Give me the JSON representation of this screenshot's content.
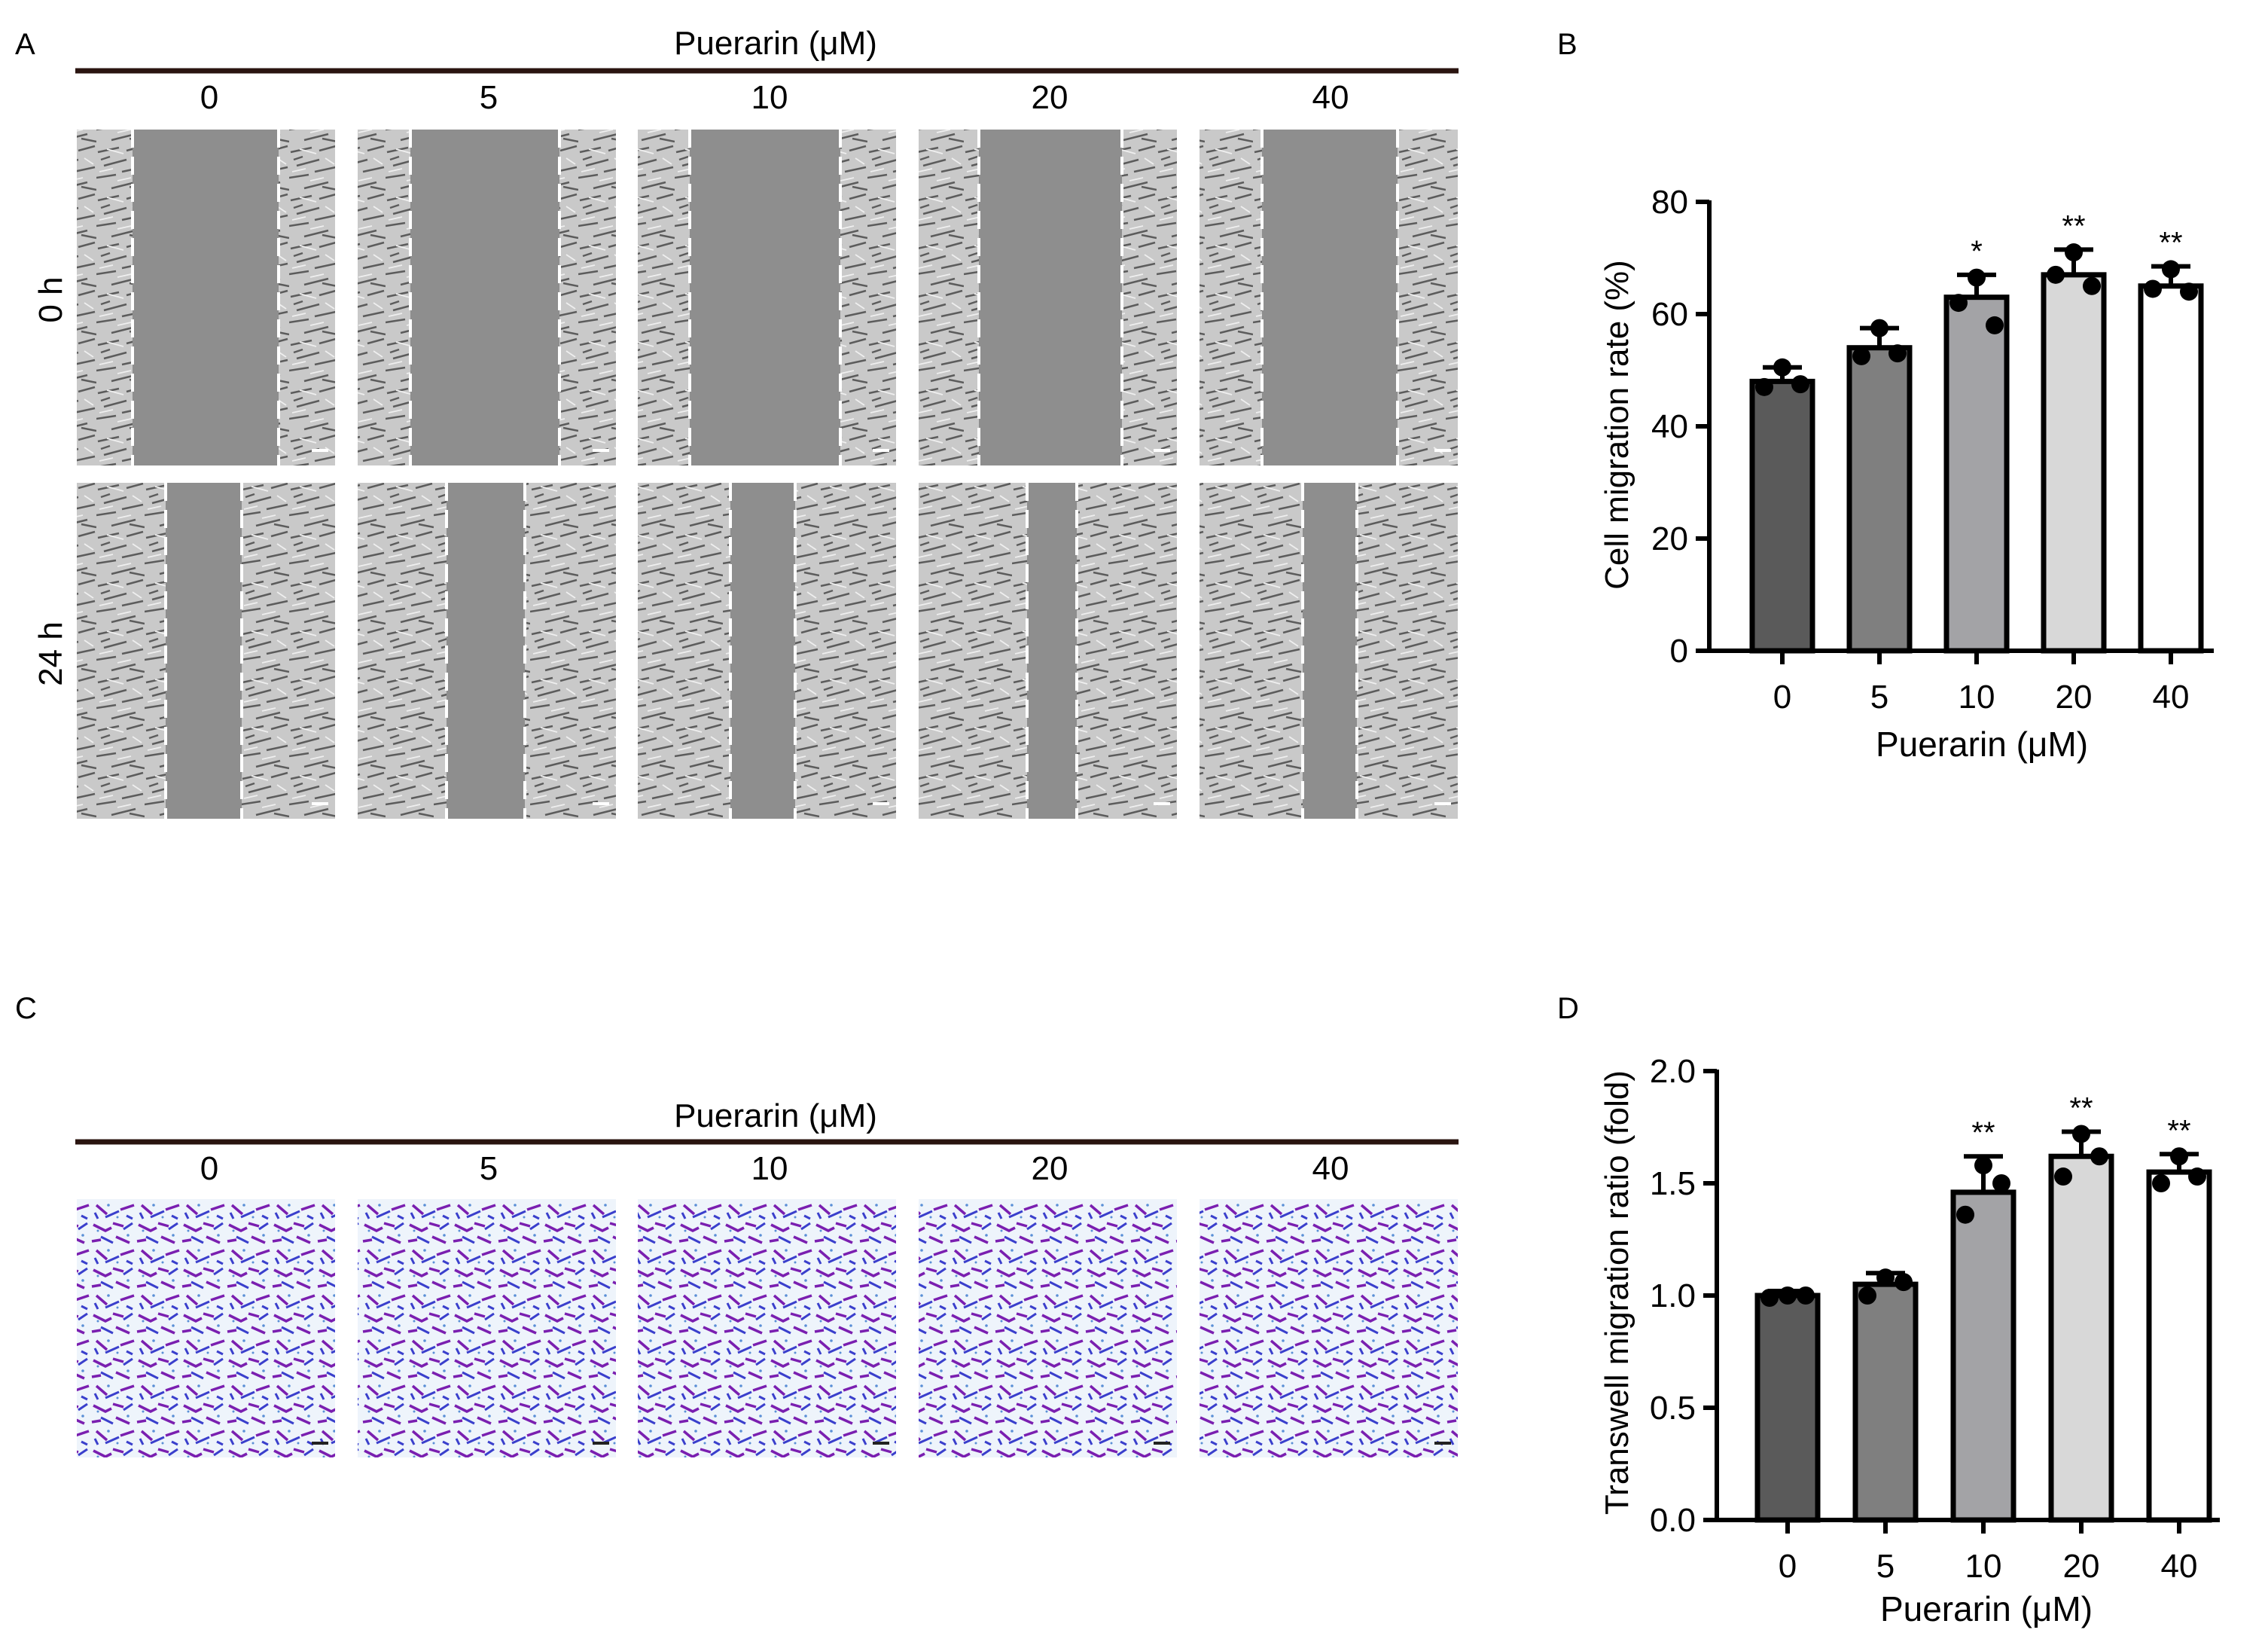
{
  "panels": {
    "A": {
      "letter": "A",
      "header": "Puerarin (μM)",
      "columns": [
        "0",
        "5",
        "10",
        "20",
        "40"
      ],
      "rows": [
        "0 h",
        "24 h"
      ],
      "image_kind": "wound healing micrograph"
    },
    "C": {
      "letter": "C",
      "header": "Puerarin (μM)",
      "columns": [
        "0",
        "5",
        "10",
        "20",
        "40"
      ],
      "image_kind": "transwell crystal violet micrograph"
    }
  },
  "colors": {
    "bars": [
      "#5a5a5a",
      "#7f7f7f",
      "#a3a3a6",
      "#d8d8d8",
      "#ffffff"
    ],
    "wound_bg": "#8e8e8e",
    "stain_purple": "#7a1fb0",
    "stain_blue": "#3a3fcc"
  },
  "chart_data": [
    {
      "letter": "B",
      "type": "bar",
      "title": "",
      "xlabel": "Puerarin (μM)",
      "ylabel": "Cell migration rate (%)",
      "categories": [
        "0",
        "5",
        "10",
        "20",
        "40"
      ],
      "values": [
        48,
        54,
        63,
        67,
        65
      ],
      "sd": [
        2.5,
        3.5,
        4,
        4.5,
        3.5
      ],
      "points": [
        [
          47,
          50.5,
          47.5
        ],
        [
          52.5,
          57.5,
          53
        ],
        [
          62,
          66.5,
          58
        ],
        [
          67,
          71,
          65
        ],
        [
          64.5,
          68,
          64
        ]
      ],
      "significance": [
        "",
        "",
        "*",
        "**",
        "**"
      ],
      "ylim": [
        0,
        80
      ],
      "yticks": [
        0,
        20,
        40,
        60,
        80
      ],
      "ytick_labels": [
        "0",
        "20",
        "40",
        "60",
        "80"
      ]
    },
    {
      "letter": "D",
      "type": "bar",
      "title": "",
      "xlabel": "Puerarin (μM)",
      "ylabel": "Transwell migration ratio (fold)",
      "categories": [
        "0",
        "5",
        "10",
        "20",
        "40"
      ],
      "values": [
        1.0,
        1.05,
        1.46,
        1.62,
        1.55
      ],
      "sd": [
        0.02,
        0.05,
        0.16,
        0.11,
        0.08
      ],
      "points": [
        [
          0.99,
          1.0,
          1.0
        ],
        [
          1.0,
          1.08,
          1.06
        ],
        [
          1.36,
          1.58,
          1.5
        ],
        [
          1.53,
          1.72,
          1.62
        ],
        [
          1.5,
          1.62,
          1.53
        ]
      ],
      "significance": [
        "",
        "",
        "**",
        "**",
        "**"
      ],
      "ylim": [
        0,
        2.0
      ],
      "yticks": [
        0,
        0.5,
        1.0,
        1.5,
        2.0
      ],
      "ytick_labels": [
        "0.0",
        "0.5",
        "1.0",
        "1.5",
        "2.0"
      ]
    }
  ]
}
